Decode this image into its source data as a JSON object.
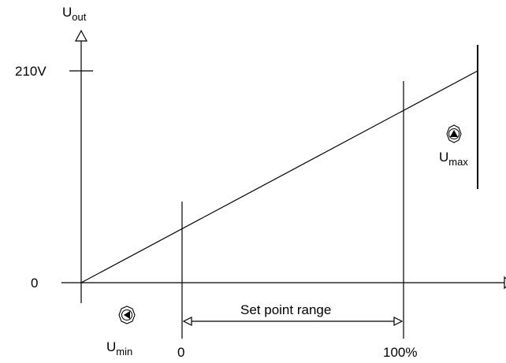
{
  "diagram": {
    "y_axis": {
      "label_main": "U",
      "label_sub": "out",
      "tick_top": "210V",
      "tick_zero": "0"
    },
    "x_axis": {
      "tick_start": "0",
      "tick_end": "100%"
    },
    "range_label": "Set point range",
    "u_min": {
      "label_main": "U",
      "label_sub": "min",
      "icon": "left-arrow-knob-icon"
    },
    "u_max": {
      "label_main": "U",
      "label_sub": "max",
      "icon": "up-arrow-knob-icon"
    },
    "stroke_color": "#000000",
    "background": "#ffffff"
  }
}
